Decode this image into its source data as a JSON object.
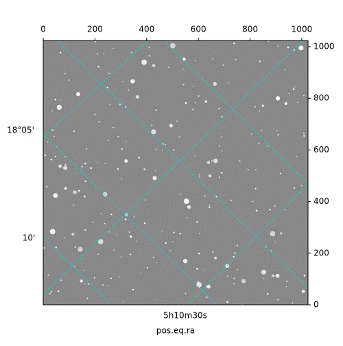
{
  "chart_data": {
    "type": "image",
    "xlabel": "pos.eq.ra",
    "xlim": [
      0,
      1024
    ],
    "xticks": [
      0,
      200,
      400,
      600,
      800,
      1000
    ],
    "ylim": [
      0,
      1024
    ],
    "yticks": [
      0,
      200,
      400,
      600,
      800,
      1000
    ],
    "left_tick_labels": [
      "18°05'",
      "10'"
    ],
    "bottom_tick_labels": [
      "5h10m30s"
    ],
    "grid_color": "#22cccc"
  }
}
